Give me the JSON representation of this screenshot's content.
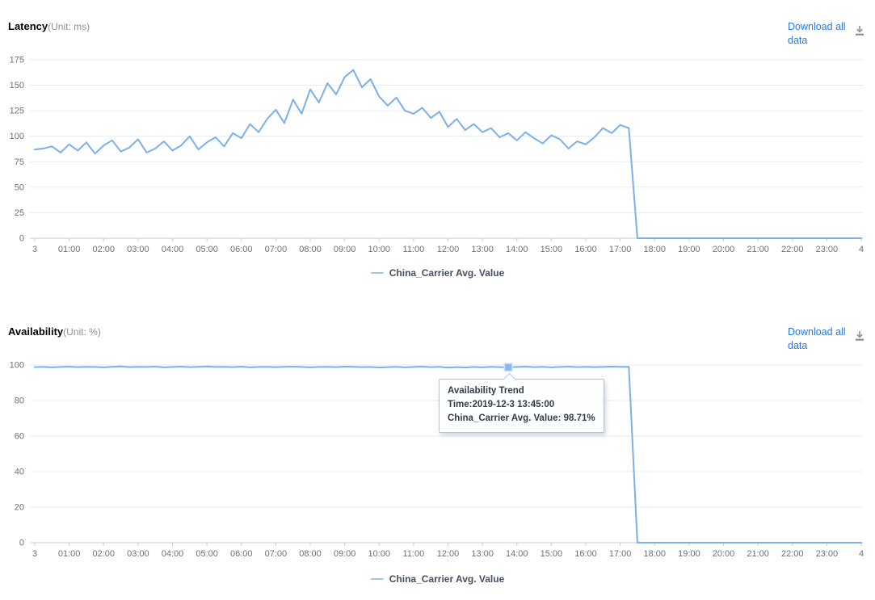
{
  "charts": [
    {
      "title": "Latency",
      "unit": "(Unit: ms)",
      "download_label": "Download all data",
      "legend": "China_Carrier Avg. Value"
    },
    {
      "title": "Availability",
      "unit": "(Unit: %)",
      "download_label": "Download all data",
      "legend": "China_Carrier Avg. Value"
    }
  ],
  "tooltip": {
    "title": "Availability Trend",
    "time_line": "Time:2019-12-3 13:45:00",
    "value_line": "China_Carrier Avg. Value: 98.71%"
  },
  "colors": {
    "line": "#7CB0E8",
    "link": "#2878DC",
    "grid": "#E8EBEF",
    "axis": "#C5CAD1",
    "tick_label": "#6E7079",
    "legend_text": "#464F5E",
    "legend_marker": "#9CC5EF",
    "tooltip_border": "#A9C7E5",
    "tooltip_text": "#333C47",
    "marker_fill": "#86B9EB",
    "marker_halo": "#CFE3F7",
    "download_icon": "#8A9096"
  },
  "chart_data": [
    {
      "type": "line",
      "title": "Latency (Unit: ms)",
      "xlabel": "",
      "ylabel": "ms",
      "x_start": "2019-12-3 00:00",
      "step_minutes": 15,
      "x_tick_labels": [
        "3",
        "01:00",
        "02:00",
        "03:00",
        "04:00",
        "05:00",
        "06:00",
        "07:00",
        "08:00",
        "09:00",
        "10:00",
        "11:00",
        "12:00",
        "13:00",
        "14:00",
        "15:00",
        "16:00",
        "17:00",
        "18:00",
        "19:00",
        "20:00",
        "21:00",
        "22:00",
        "23:00",
        "4"
      ],
      "y_ticks": [
        0,
        25,
        50,
        75,
        100,
        125,
        150,
        175
      ],
      "ylim": [
        0,
        175
      ],
      "grid": true,
      "legend_position": "bottom",
      "series": [
        {
          "name": "China_Carrier Avg. Value",
          "values": [
            87,
            88,
            90,
            84,
            92,
            86,
            94,
            83,
            91,
            96,
            85,
            89,
            97,
            84,
            88,
            95,
            86,
            91,
            100,
            87,
            94,
            99,
            90,
            103,
            98,
            112,
            104,
            117,
            126,
            113,
            136,
            122,
            146,
            133,
            152,
            141,
            158,
            165,
            148,
            156,
            139,
            130,
            138,
            125,
            122,
            128,
            118,
            124,
            109,
            117,
            106,
            112,
            104,
            108,
            99,
            103,
            96,
            104,
            98,
            93,
            101,
            97,
            88,
            95,
            92,
            99,
            108,
            103,
            111,
            108,
            0,
            0,
            0,
            0,
            0,
            0,
            0,
            0,
            0,
            0,
            0,
            0,
            0,
            0,
            0,
            0,
            0,
            0,
            0,
            0,
            0,
            0,
            0,
            0,
            0,
            0,
            0
          ]
        }
      ]
    },
    {
      "type": "line",
      "title": "Availability (Unit: %)",
      "xlabel": "",
      "ylabel": "%",
      "x_start": "2019-12-3 00:00",
      "step_minutes": 15,
      "x_tick_labels": [
        "3",
        "01:00",
        "02:00",
        "03:00",
        "04:00",
        "05:00",
        "06:00",
        "07:00",
        "08:00",
        "09:00",
        "10:00",
        "11:00",
        "12:00",
        "13:00",
        "14:00",
        "15:00",
        "16:00",
        "17:00",
        "18:00",
        "19:00",
        "20:00",
        "21:00",
        "22:00",
        "23:00",
        "4"
      ],
      "y_ticks": [
        0,
        20,
        40,
        60,
        80,
        100
      ],
      "ylim": [
        0,
        100
      ],
      "grid": true,
      "legend_position": "bottom",
      "highlighted_point": {
        "time": "2019-12-3 13:45:00",
        "value": 98.71,
        "index": 55
      },
      "series": [
        {
          "name": "China_Carrier Avg. Value",
          "values": [
            98.8,
            99.0,
            98.7,
            98.9,
            99.1,
            98.8,
            99.0,
            98.9,
            98.7,
            99.0,
            99.2,
            98.8,
            99.0,
            98.9,
            99.1,
            98.7,
            98.9,
            99.1,
            98.8,
            99.0,
            99.2,
            98.9,
            99.0,
            98.8,
            99.1,
            98.7,
            98.9,
            99.0,
            98.8,
            99.0,
            99.1,
            98.9,
            98.7,
            98.9,
            99.0,
            98.8,
            99.1,
            99.0,
            98.8,
            98.9,
            98.6,
            98.8,
            99.0,
            98.7,
            98.9,
            99.1,
            98.8,
            99.0,
            98.5,
            98.8,
            98.6,
            98.9,
            98.7,
            99.0,
            98.8,
            98.71,
            98.9,
            99.1,
            98.8,
            99.0,
            98.7,
            98.9,
            99.1,
            98.8,
            99.0,
            98.8,
            98.9,
            99.1,
            99.0,
            98.9,
            0,
            0,
            0,
            0,
            0,
            0,
            0,
            0,
            0,
            0,
            0,
            0,
            0,
            0,
            0,
            0,
            0,
            0,
            0,
            0,
            0,
            0,
            0,
            0,
            0,
            0,
            0
          ]
        }
      ]
    }
  ]
}
